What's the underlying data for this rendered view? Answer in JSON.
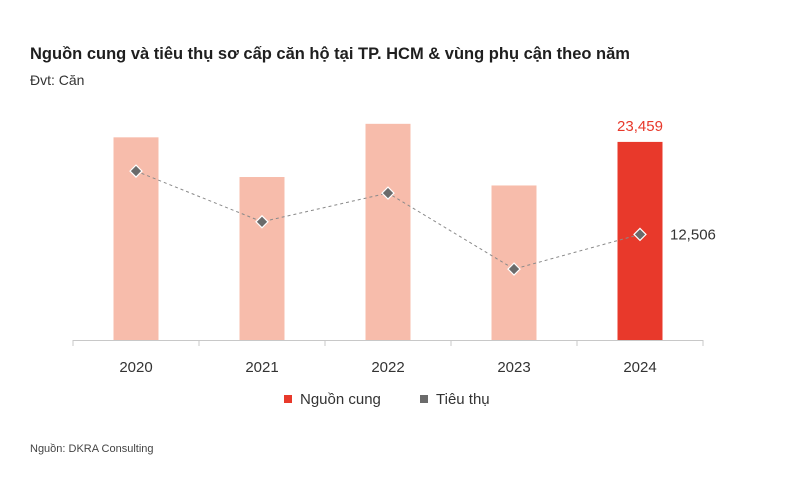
{
  "header": {
    "title": "Nguồn cung và tiêu thụ sơ cấp căn hộ tại TP. HCM & vùng phụ cận theo năm",
    "unit": "Đvt: Căn"
  },
  "footer": {
    "source": "Nguồn: DKRA Consulting"
  },
  "colors": {
    "supply": "#f7bcab",
    "supply_highlight": "#e8392b",
    "sales_marker": "#6b6b6b",
    "line": "#8a8a8a",
    "axis": "#c8c8c8"
  },
  "chart_data": {
    "type": "bar",
    "categories": [
      "2020",
      "2021",
      "2022",
      "2023",
      "2024"
    ],
    "series": [
      {
        "name": "Nguồn cung",
        "type": "bar",
        "values": [
          24000,
          19300,
          25600,
          18300,
          23459
        ]
      },
      {
        "name": "Tiêu thụ",
        "type": "line",
        "values": [
          20000,
          14000,
          17400,
          8400,
          12506
        ]
      }
    ],
    "data_labels": {
      "supply_2024": "23,459",
      "sales_2024": "12,506"
    },
    "highlight_index": 4,
    "ylim": [
      0,
      27000
    ],
    "legend": [
      "Nguồn cung",
      "Tiêu thụ"
    ],
    "legend_position": "bottom"
  }
}
